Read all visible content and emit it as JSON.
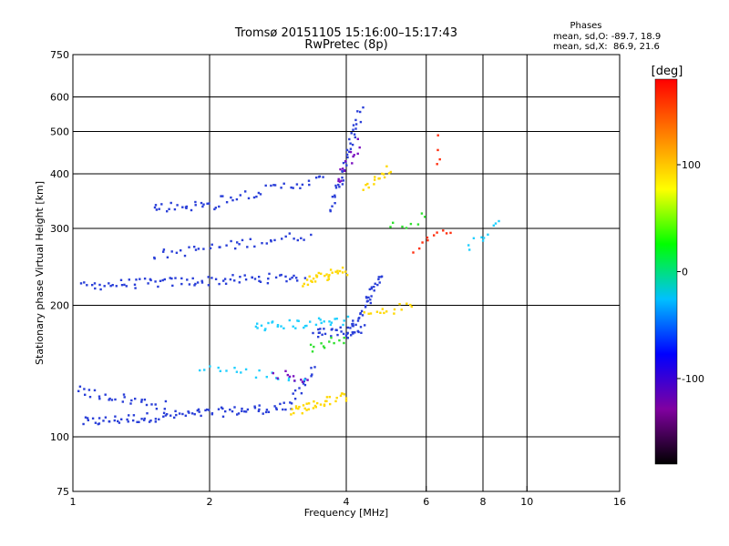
{
  "chart_data": {
    "type": "scatter",
    "title": "Tromsø 20151105 15:16:00–15:17:43",
    "subtitle": "RwPretec (8p)",
    "xlabel": "Frequency [MHz]",
    "ylabel": "Stationary phase Virtual Height [km]",
    "x_scale": "log",
    "y_scale": "log",
    "xlim": [
      1,
      16
    ],
    "ylim": [
      75,
      750
    ],
    "x_ticks": [
      1,
      2,
      4,
      6,
      8,
      10,
      16
    ],
    "x_tick_labels": [
      "1",
      "2",
      "4",
      "6",
      "8",
      "10",
      "16"
    ],
    "y_ticks": [
      75,
      100,
      200,
      300,
      400,
      500,
      600,
      750
    ],
    "y_tick_labels": [
      "75",
      "100",
      "200",
      "300",
      "400",
      "500",
      "600",
      "750"
    ],
    "grid": true,
    "phases_box": {
      "title": "Phases",
      "line_o": "mean, sd,O: -89.7, 18.9",
      "line_x": "mean, sd,X:  86.9, 21.6"
    },
    "colorbar": {
      "label": "[deg]",
      "range": [
        -180,
        180
      ],
      "ticks": [
        100,
        0,
        -100
      ],
      "tick_labels": [
        "100",
        "0",
        "-100"
      ],
      "colormap": "rainbow",
      "stops": [
        "#000000",
        "#8000a0",
        "#0000ff",
        "#00c0ff",
        "#00ff00",
        "#ffff00",
        "#ff8000",
        "#ff0000"
      ]
    },
    "series": [
      {
        "name": "",
        "color": "#2a3fd8",
        "traces": [
          {
            "f0": 1.05,
            "f1": 3.0,
            "h0": 108,
            "h1": 117,
            "n": 90
          },
          {
            "f0": 1.05,
            "f1": 3.2,
            "h0": 222,
            "h1": 232,
            "n": 80
          },
          {
            "f0": 1.0,
            "f1": 1.6,
            "h0": 128,
            "h1": 118,
            "n": 30
          },
          {
            "f0": 1.5,
            "f1": 3.3,
            "h0": 260,
            "h1": 290,
            "n": 40
          },
          {
            "f0": 2.1,
            "f1": 3.6,
            "h0": 350,
            "h1": 390,
            "n": 30
          },
          {
            "f0": 3.0,
            "f1": 3.4,
            "h0": 118,
            "h1": 145,
            "n": 15
          },
          {
            "f0": 3.7,
            "f1": 4.3,
            "h0": 330,
            "h1": 560,
            "n": 40
          },
          {
            "f0": 4.0,
            "f1": 4.8,
            "h0": 170,
            "h1": 235,
            "n": 40
          },
          {
            "f0": 3.4,
            "f1": 4.4,
            "h0": 172,
            "h1": 178,
            "n": 30
          },
          {
            "f0": 1.5,
            "f1": 2.1,
            "h0": 335,
            "h1": 340,
            "n": 25
          }
        ]
      },
      {
        "name": "",
        "color": "#ffd800",
        "traces": [
          {
            "f0": 3.0,
            "f1": 4.0,
            "h0": 114,
            "h1": 124,
            "n": 35
          },
          {
            "f0": 3.2,
            "f1": 4.0,
            "h0": 226,
            "h1": 240,
            "n": 30
          },
          {
            "f0": 4.4,
            "f1": 5.0,
            "h0": 370,
            "h1": 410,
            "n": 15
          },
          {
            "f0": 4.4,
            "f1": 5.6,
            "h0": 190,
            "h1": 200,
            "n": 15
          }
        ]
      },
      {
        "name": "",
        "color": "#20d0ff",
        "traces": [
          {
            "f0": 2.5,
            "f1": 4.0,
            "h0": 178,
            "h1": 185,
            "n": 35
          },
          {
            "f0": 1.9,
            "f1": 3.2,
            "h0": 145,
            "h1": 135,
            "n": 20
          },
          {
            "f0": 7.4,
            "f1": 8.8,
            "h0": 270,
            "h1": 310,
            "n": 10
          }
        ]
      },
      {
        "name": "",
        "color": "#30e030",
        "traces": [
          {
            "f0": 3.3,
            "f1": 4.0,
            "h0": 160,
            "h1": 168,
            "n": 12
          },
          {
            "f0": 5.0,
            "f1": 6.0,
            "h0": 300,
            "h1": 320,
            "n": 8
          }
        ]
      },
      {
        "name": "",
        "color": "#ff3010",
        "traces": [
          {
            "f0": 5.6,
            "f1": 6.8,
            "h0": 270,
            "h1": 300,
            "n": 10
          },
          {
            "f0": 6.3,
            "f1": 6.4,
            "h0": 480,
            "h1": 420,
            "n": 4
          }
        ]
      },
      {
        "name": "",
        "color": "#7a10c0",
        "traces": [
          {
            "f0": 3.8,
            "f1": 4.3,
            "h0": 380,
            "h1": 470,
            "n": 15
          },
          {
            "f0": 2.8,
            "f1": 3.3,
            "h0": 140,
            "h1": 135,
            "n": 10
          }
        ]
      }
    ]
  }
}
